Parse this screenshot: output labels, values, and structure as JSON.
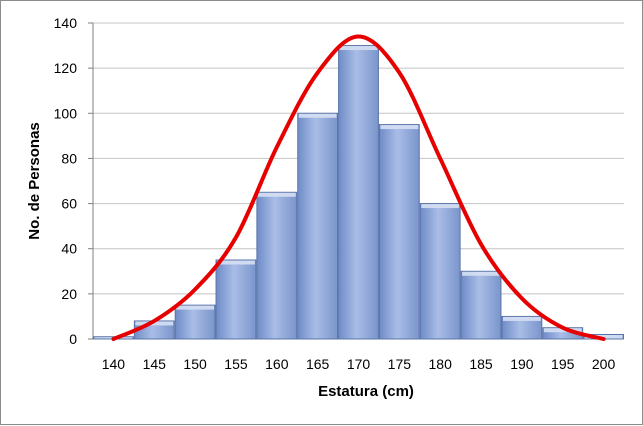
{
  "chart_data": {
    "type": "bar",
    "title": "",
    "xlabel": "Estatura (cm)",
    "ylabel": "No. de Personas",
    "x_tick_labels": [
      "140",
      "145",
      "150",
      "155",
      "160",
      "165",
      "170",
      "175",
      "180",
      "185",
      "190",
      "195",
      "200"
    ],
    "y_tick_labels": [
      "0",
      "20",
      "40",
      "60",
      "80",
      "100",
      "120",
      "140"
    ],
    "ylim": [
      0,
      140
    ],
    "grid": true,
    "legend": "none",
    "series": [
      {
        "values": [
          1,
          8,
          15,
          35,
          65,
          100,
          130,
          95,
          60,
          30,
          10,
          5,
          2
        ],
        "color": "#8ea6d6"
      },
      {
        "type": "line",
        "color": "#e60000",
        "x": [
          140,
          145,
          150,
          155,
          160,
          165,
          170,
          175,
          180,
          185,
          190,
          195,
          200
        ],
        "values": [
          0,
          8,
          22,
          45,
          85,
          118,
          134,
          118,
          80,
          42,
          18,
          5,
          0
        ]
      }
    ]
  }
}
